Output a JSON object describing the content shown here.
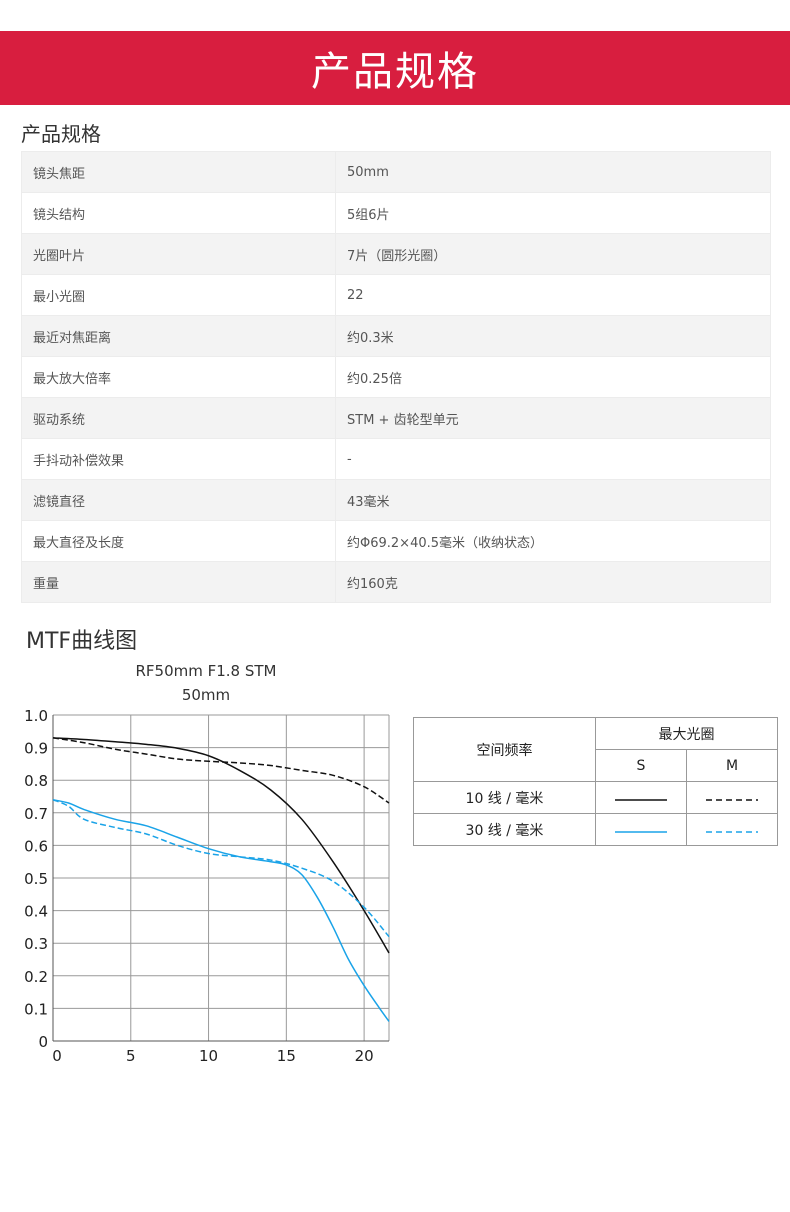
{
  "banner": {
    "title": "产品规格"
  },
  "specs": {
    "title": "产品规格",
    "rows": [
      {
        "label": "镜头焦距",
        "value": "50mm"
      },
      {
        "label": "镜头结构",
        "value": "5组6片"
      },
      {
        "label": "光圈叶片",
        "value": "7片（圆形光圈）"
      },
      {
        "label": "最小光圈",
        "value": "22"
      },
      {
        "label": "最近对焦距离",
        "value": "约0.3米"
      },
      {
        "label": "最大放大倍率",
        "value": "约0.25倍"
      },
      {
        "label": "驱动系统",
        "value": "STM + 齿轮型单元"
      },
      {
        "label": "手抖动补偿效果",
        "value": "-"
      },
      {
        "label": "滤镜直径",
        "value": "43毫米"
      },
      {
        "label": "最大直径及长度",
        "value": "约Φ69.2×40.5毫米（收纳状态）"
      },
      {
        "label": "重量",
        "value": "约160克"
      }
    ]
  },
  "mtf": {
    "title": "MTF曲线图"
  },
  "chart_data": {
    "type": "line",
    "title": "RF50mm F1.8 STM",
    "subtitle": "50mm",
    "xlim": [
      0,
      21.6
    ],
    "ylim": [
      0,
      1.0
    ],
    "xticks": [
      0,
      5,
      10,
      15,
      20
    ],
    "yticks": [
      0,
      0.1,
      0.2,
      0.3,
      0.4,
      0.5,
      0.6,
      0.7,
      0.8,
      0.9,
      1.0
    ],
    "ytick_labels": [
      "0",
      "0.1",
      "0.2",
      "0.3",
      "0.4",
      "0.5",
      "0.6",
      "0.7",
      "0.8",
      "0.9",
      "1.0"
    ],
    "grid": true,
    "series": [
      {
        "key": "s10",
        "color": "#111111",
        "dash": false,
        "x": [
          0,
          2,
          4,
          6,
          8,
          10,
          12,
          14,
          16,
          18,
          20,
          21.6
        ],
        "y": [
          0.93,
          0.925,
          0.918,
          0.91,
          0.898,
          0.875,
          0.83,
          0.77,
          0.68,
          0.55,
          0.4,
          0.27
        ]
      },
      {
        "key": "m10",
        "color": "#111111",
        "dash": true,
        "x": [
          0,
          2,
          4,
          6,
          8,
          10,
          12,
          14,
          16,
          18,
          20,
          21.6
        ],
        "y": [
          0.93,
          0.915,
          0.895,
          0.88,
          0.865,
          0.858,
          0.853,
          0.845,
          0.83,
          0.815,
          0.78,
          0.73
        ]
      },
      {
        "key": "s30",
        "color": "#1aa3e8",
        "dash": false,
        "x": [
          0,
          1,
          2,
          4,
          6,
          8,
          10,
          12,
          14,
          15,
          16,
          17,
          18,
          19,
          20,
          21,
          21.6
        ],
        "y": [
          0.74,
          0.73,
          0.71,
          0.68,
          0.66,
          0.625,
          0.59,
          0.565,
          0.55,
          0.54,
          0.51,
          0.44,
          0.35,
          0.25,
          0.17,
          0.1,
          0.06
        ]
      },
      {
        "key": "m30",
        "color": "#1aa3e8",
        "dash": true,
        "x": [
          0,
          1,
          2,
          4,
          6,
          8,
          10,
          12,
          14,
          16,
          18,
          20,
          21.6
        ],
        "y": [
          0.74,
          0.72,
          0.68,
          0.655,
          0.635,
          0.6,
          0.575,
          0.565,
          0.555,
          0.53,
          0.49,
          0.41,
          0.32
        ]
      }
    ],
    "legend": {
      "placement": "right",
      "header": "空间频率",
      "aperture_header": "最大光圈",
      "s_label": "S",
      "m_label": "M",
      "rows": [
        {
          "label": "10 线 / 毫米",
          "color": "#111111"
        },
        {
          "label": "30 线 / 毫米",
          "color": "#1aa3e8"
        }
      ]
    }
  }
}
